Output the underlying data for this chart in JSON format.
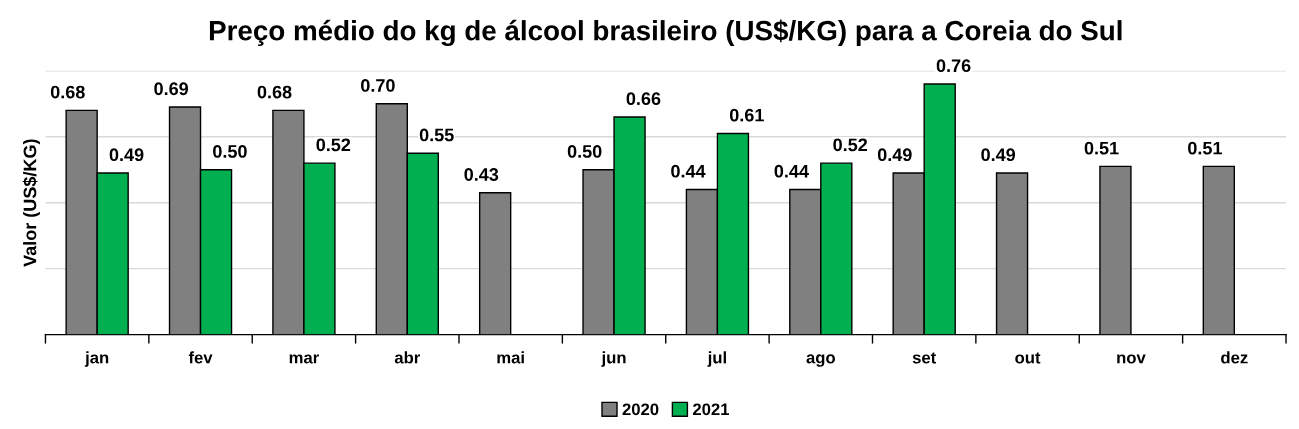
{
  "chart_data": {
    "type": "bar",
    "title": "Preço médio do kg de álcool brasileiro (US$/KG) para a Coreia do Sul",
    "ylabel": "Valor (US$/KG)",
    "categories": [
      "jan",
      "fev",
      "mar",
      "abr",
      "mai",
      "jun",
      "jul",
      "ago",
      "set",
      "out",
      "nov",
      "dez"
    ],
    "series": [
      {
        "name": "2020",
        "color": "#808080",
        "values": [
          0.68,
          0.69,
          0.68,
          0.7,
          0.43,
          0.5,
          0.44,
          0.44,
          0.49,
          0.49,
          0.51,
          0.51
        ],
        "value_labels": [
          "0.68",
          "0.69",
          "0.68",
          "0.70",
          "0.43",
          "0.50",
          "0.44",
          "0.44",
          "0.49",
          "0.49",
          "0.51",
          "0.51"
        ]
      },
      {
        "name": "2021",
        "color": "#00b050",
        "values": [
          0.49,
          0.5,
          0.52,
          0.55,
          null,
          0.66,
          0.61,
          0.52,
          0.76,
          null,
          null,
          null
        ],
        "value_labels": [
          "0.49",
          "0.50",
          "0.52",
          "0.55",
          null,
          "0.66",
          "0.61",
          "0.52",
          "0.76",
          null,
          null,
          null
        ]
      }
    ],
    "ylim": [
      0,
      0.8
    ],
    "yticks": [
      {
        "value": 0.2,
        "label": null
      },
      {
        "value": 0.4,
        "label": null
      },
      {
        "value": 0.6,
        "label": null
      },
      {
        "value": 0.8,
        "label": null
      }
    ],
    "tick_labels": "x",
    "grid": "y",
    "legend": "bottom"
  }
}
